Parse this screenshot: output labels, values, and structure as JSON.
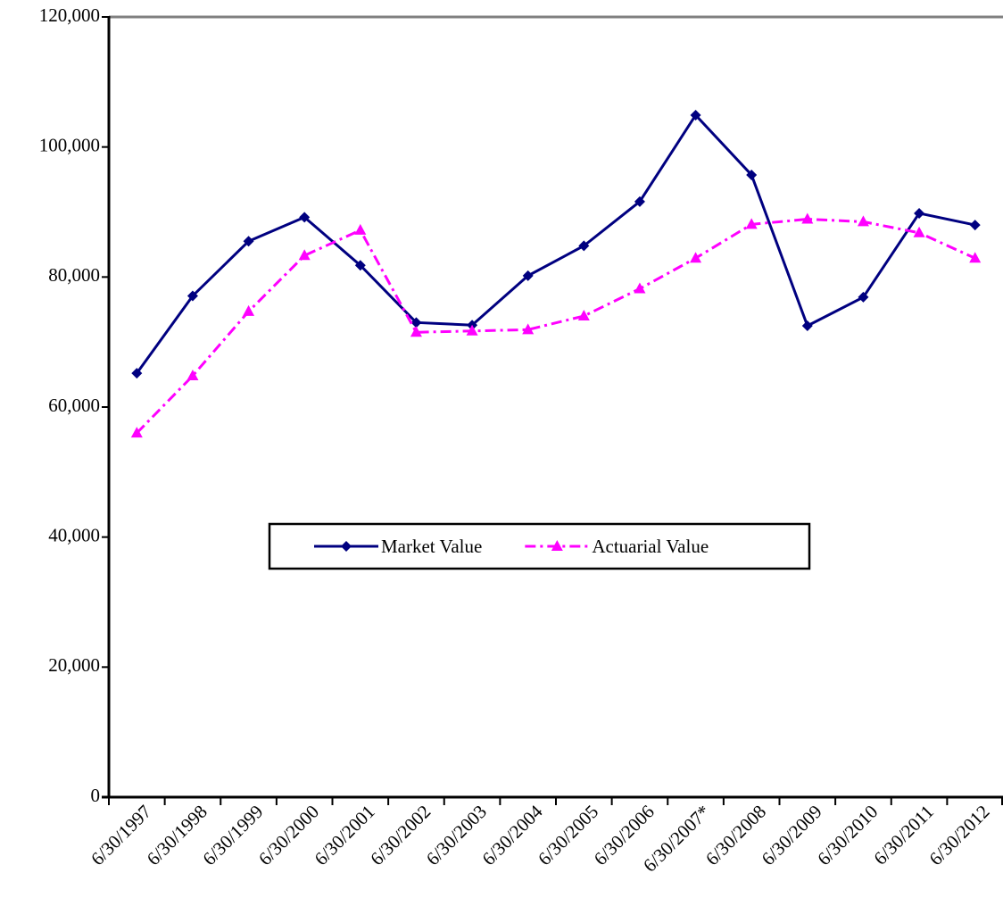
{
  "chart_data": {
    "type": "line",
    "categories": [
      "6/30/1997",
      "6/30/1998",
      "6/30/1999",
      "6/30/2000",
      "6/30/2001",
      "6/30/2002",
      "6/30/2003",
      "6/30/2004",
      "6/30/2005",
      "6/30/2006",
      "6/30/2007*",
      "6/30/2008",
      "6/30/2009",
      "6/30/2010",
      "6/30/2011",
      "6/30/2012"
    ],
    "series": [
      {
        "name": "Market Value",
        "color": "#000080",
        "marker": "diamond",
        "dash": "solid",
        "values": [
          65200,
          77100,
          85500,
          89200,
          81800,
          73000,
          72600,
          80200,
          84800,
          91600,
          104900,
          95700,
          72500,
          76900,
          89800,
          88000
        ]
      },
      {
        "name": "Actuarial Value",
        "color": "#ff00ff",
        "marker": "triangle",
        "dash": "dash-dot",
        "values": [
          56000,
          64800,
          74700,
          83300,
          87200,
          71500,
          71700,
          71900,
          74000,
          78200,
          82900,
          88100,
          88900,
          88500,
          86800,
          82900
        ]
      }
    ],
    "ylim": [
      0,
      120000
    ],
    "yticks": [
      0,
      {
        "value": 20000,
        "label": "20,000"
      },
      {
        "value": 40000,
        "label": "40,000"
      },
      {
        "value": 60000,
        "label": "60,000"
      },
      {
        "value": 80000,
        "label": "80,000"
      },
      {
        "value": 100000,
        "label": "100,000"
      },
      {
        "value": 120000,
        "label": "120,000"
      }
    ],
    "grid": false,
    "legend": "center"
  }
}
